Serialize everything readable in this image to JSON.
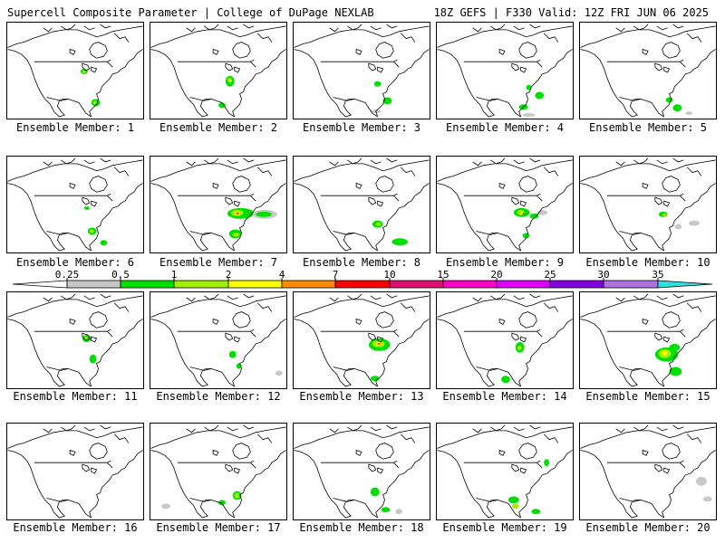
{
  "header": {
    "title": "Supercell Composite Parameter | College of DuPage NEXLAB",
    "run_info": "18Z GEFS | F330 Valid: 12Z FRI JUN 06 2025"
  },
  "panels": [
    {
      "label": "Ensemble Member: 1"
    },
    {
      "label": "Ensemble Member: 2"
    },
    {
      "label": "Ensemble Member: 3"
    },
    {
      "label": "Ensemble Member: 4"
    },
    {
      "label": "Ensemble Member: 5"
    },
    {
      "label": "Ensemble Member: 6"
    },
    {
      "label": "Ensemble Member: 7"
    },
    {
      "label": "Ensemble Member: 8"
    },
    {
      "label": "Ensemble Member: 9"
    },
    {
      "label": "Ensemble Member: 10"
    },
    {
      "label": "Ensemble Member: 11"
    },
    {
      "label": "Ensemble Member: 12"
    },
    {
      "label": "Ensemble Member: 13"
    },
    {
      "label": "Ensemble Member: 14"
    },
    {
      "label": "Ensemble Member: 15"
    },
    {
      "label": "Ensemble Member: 16"
    },
    {
      "label": "Ensemble Member: 17"
    },
    {
      "label": "Ensemble Member: 18"
    },
    {
      "label": "Ensemble Member: 19"
    },
    {
      "label": "Ensemble Member: 20"
    }
  ],
  "colorbar": {
    "levels": [
      "0.25",
      "0.5",
      "1",
      "2",
      "4",
      "7",
      "10",
      "15",
      "20",
      "25",
      "30",
      "35"
    ],
    "colors": [
      "#ffffff",
      "#c8c8c8",
      "#00e000",
      "#a0f000",
      "#ffff00",
      "#ff8c00",
      "#ff0000",
      "#e01070",
      "#ff00c8",
      "#e000ff",
      "#8000e0",
      "#b070e0",
      "#30e0e0"
    ]
  }
}
